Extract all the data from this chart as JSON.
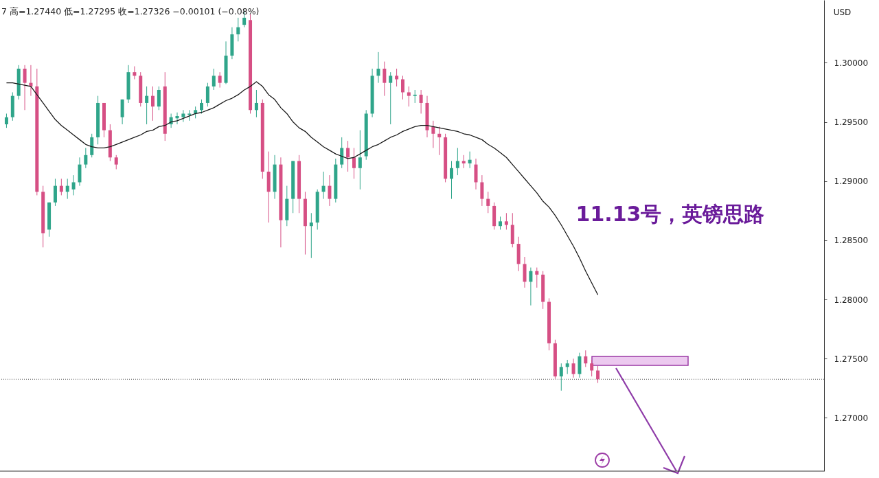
{
  "chart_data": {
    "type": "candlestick",
    "subtitle": "7 高=1.27440 低=1.27295 收=1.27326 −0.00101 (−0.08%)",
    "ylabel": "USD",
    "annotations": [
      "11.13号，英镑思路"
    ],
    "categories": [
      null,
      null,
      null,
      null,
      null,
      null,
      null,
      null,
      null,
      null,
      null,
      null,
      null,
      null,
      null,
      null,
      null,
      null,
      null,
      null,
      null,
      null,
      null,
      null,
      null,
      null,
      null,
      null,
      null,
      null,
      null,
      null,
      null,
      null,
      null,
      null,
      null,
      null,
      null,
      null,
      null,
      null,
      null,
      null,
      null,
      null,
      null,
      null,
      null,
      null,
      null,
      null,
      null,
      null,
      null,
      null,
      null,
      null,
      null,
      null,
      null,
      null,
      null,
      null,
      null,
      null,
      null,
      null,
      null,
      null,
      null,
      null,
      null,
      null,
      null,
      null,
      null,
      null,
      null,
      null,
      null,
      null,
      null,
      null,
      null,
      null,
      null,
      null,
      null,
      null,
      null,
      null,
      null,
      null,
      null,
      null,
      null,
      null
    ],
    "ohlc": [
      [
        1.2948,
        1.2957,
        1.2945,
        1.2954
      ],
      [
        1.2954,
        1.2975,
        1.2951,
        1.2972
      ],
      [
        1.2972,
        1.2998,
        1.2969,
        1.2995
      ],
      [
        1.2995,
        1.2998,
        1.296,
        1.2983
      ],
      [
        1.2983,
        1.2998,
        1.2972,
        1.298
      ],
      [
        1.298,
        1.2995,
        1.2888,
        1.2891
      ],
      [
        1.2891,
        1.2896,
        1.2844,
        1.2856
      ],
      [
        1.2859,
        1.2882,
        1.2853,
        1.2882
      ],
      [
        1.2882,
        1.2902,
        1.2879,
        1.2896
      ],
      [
        1.2896,
        1.2902,
        1.2888,
        1.2891
      ],
      [
        1.2891,
        1.2902,
        1.2885,
        1.2896
      ],
      [
        1.2893,
        1.2905,
        1.2888,
        1.2899
      ],
      [
        1.2899,
        1.292,
        1.2896,
        1.2914
      ],
      [
        1.2914,
        1.2928,
        1.2911,
        1.2922
      ],
      [
        1.2922,
        1.294,
        1.292,
        1.2937
      ],
      [
        1.2937,
        1.2972,
        1.2931,
        1.2966
      ],
      [
        1.2966,
        1.2966,
        1.2937,
        1.2943
      ],
      [
        1.2943,
        1.2948,
        1.2917,
        1.292
      ],
      [
        1.292,
        1.2922,
        1.291,
        1.2914
      ],
      [
        1.2954,
        1.2969,
        1.2948,
        1.2969
      ],
      [
        1.2969,
        1.2998,
        1.2966,
        1.2992
      ],
      [
        1.2992,
        1.2997,
        1.2986,
        1.2989
      ],
      [
        1.2989,
        1.2992,
        1.2963,
        1.2966
      ],
      [
        1.2966,
        1.298,
        1.2948,
        1.2972
      ],
      [
        1.2972,
        1.298,
        1.2951,
        1.2963
      ],
      [
        1.2963,
        1.298,
        1.296,
        1.2977
      ],
      [
        1.298,
        1.2992,
        1.2934,
        1.294
      ],
      [
        1.2948,
        1.2957,
        1.2945,
        1.2954
      ],
      [
        1.2953,
        1.2958,
        1.2948,
        1.2955
      ],
      [
        1.2954,
        1.296,
        1.295,
        1.2957
      ],
      [
        1.2956,
        1.296,
        1.2951,
        1.2957
      ],
      [
        1.2957,
        1.2963,
        1.2953,
        1.296
      ],
      [
        1.296,
        1.2969,
        1.2957,
        1.2966
      ],
      [
        1.2966,
        1.2983,
        1.2963,
        1.298
      ],
      [
        1.298,
        1.2995,
        1.2977,
        1.2989
      ],
      [
        1.2989,
        1.2992,
        1.2979,
        1.2983
      ],
      [
        1.2983,
        1.3018,
        1.2982,
        1.3006
      ],
      [
        1.3006,
        1.303,
        1.3003,
        1.3024
      ],
      [
        1.3024,
        1.3038,
        1.3018,
        1.303
      ],
      [
        1.3032,
        1.3044,
        1.303,
        1.3038
      ],
      [
        1.3036,
        1.3041,
        1.2957,
        1.296
      ],
      [
        1.296,
        1.2977,
        1.2954,
        1.2966
      ],
      [
        1.2966,
        1.2969,
        1.2902,
        1.2908
      ],
      [
        1.2908,
        1.2925,
        1.2865,
        1.2891
      ],
      [
        1.2891,
        1.2922,
        1.2885,
        1.2914
      ],
      [
        1.2914,
        1.292,
        1.2844,
        1.2867
      ],
      [
        1.2867,
        1.2896,
        1.2862,
        1.2885
      ],
      [
        1.2885,
        1.2917,
        1.2873,
        1.2917
      ],
      [
        1.2917,
        1.2922,
        1.2873,
        1.2885
      ],
      [
        1.2885,
        1.2891,
        1.2838,
        1.2862
      ],
      [
        1.2862,
        1.2873,
        1.2835,
        1.2865
      ],
      [
        1.2865,
        1.2893,
        1.2859,
        1.2891
      ],
      [
        1.2891,
        1.2908,
        1.2885,
        1.2896
      ],
      [
        1.2896,
        1.2905,
        1.2879,
        1.2885
      ],
      [
        1.2885,
        1.2919,
        1.2882,
        1.2914
      ],
      [
        1.2914,
        1.2937,
        1.2911,
        1.2928
      ],
      [
        1.2928,
        1.2934,
        1.2908,
        1.292
      ],
      [
        1.292,
        1.2928,
        1.2902,
        1.2911
      ],
      [
        1.2911,
        1.2943,
        1.2893,
        1.292
      ],
      [
        1.2921,
        1.296,
        1.2918,
        1.2957
      ],
      [
        1.2957,
        1.2995,
        1.2954,
        1.2989
      ],
      [
        1.2989,
        1.3009,
        1.2983,
        1.2995
      ],
      [
        1.2995,
        1.3001,
        1.2972,
        1.2983
      ],
      [
        1.2983,
        1.2992,
        1.2948,
        1.2989
      ],
      [
        1.2989,
        1.2995,
        1.298,
        1.2986
      ],
      [
        1.2986,
        1.2989,
        1.2969,
        1.2975
      ],
      [
        1.2975,
        1.298,
        1.2963,
        1.2972
      ],
      [
        1.2972,
        1.2977,
        1.2966,
        1.2973
      ],
      [
        1.2973,
        1.2977,
        1.2957,
        1.2966
      ],
      [
        1.2966,
        1.2972,
        1.2937,
        1.2943
      ],
      [
        1.2946,
        1.2951,
        1.2928,
        1.294
      ],
      [
        1.294,
        1.2946,
        1.2922,
        1.2937
      ],
      [
        1.2937,
        1.294,
        1.2899,
        1.2902
      ],
      [
        1.2902,
        1.2917,
        1.2885,
        1.2911
      ],
      [
        1.2911,
        1.2928,
        1.2905,
        1.2917
      ],
      [
        1.2917,
        1.2922,
        1.2911,
        1.2915
      ],
      [
        1.2915,
        1.2925,
        1.2911,
        1.2918
      ],
      [
        1.2914,
        1.2919,
        1.2893,
        1.2899
      ],
      [
        1.2899,
        1.2905,
        1.2879,
        1.2885
      ],
      [
        1.2885,
        1.2891,
        1.2873,
        1.2879
      ],
      [
        1.2879,
        1.2882,
        1.2859,
        1.2862
      ],
      [
        1.2862,
        1.287,
        1.2859,
        1.2866
      ],
      [
        1.2866,
        1.2873,
        1.2859,
        1.2863
      ],
      [
        1.2863,
        1.2873,
        1.2844,
        1.2847
      ],
      [
        1.2847,
        1.2853,
        1.2824,
        1.283
      ],
      [
        1.283,
        1.2836,
        1.281,
        1.2815
      ],
      [
        1.2815,
        1.2827,
        1.2795,
        1.2824
      ],
      [
        1.2824,
        1.2827,
        1.281,
        1.2821
      ],
      [
        1.2821,
        1.2824,
        1.2792,
        1.2798
      ],
      [
        1.2798,
        1.2801,
        1.2757,
        1.2763
      ],
      [
        1.2763,
        1.2766,
        1.2733,
        1.2735
      ],
      [
        1.2735,
        1.2746,
        1.2723,
        1.2743
      ],
      [
        1.2743,
        1.2749,
        1.2737,
        1.2746
      ],
      [
        1.2746,
        1.275,
        1.2734,
        1.2737
      ],
      [
        1.2737,
        1.2755,
        1.2734,
        1.2752
      ],
      [
        1.2752,
        1.2757,
        1.2743,
        1.2746
      ],
      [
        1.2746,
        1.2749,
        1.2735,
        1.274
      ],
      [
        1.274,
        1.2744,
        1.27295,
        1.27326
      ]
    ],
    "colors": [
      "#2fa58a",
      "#2fa58a",
      "#2fa58a",
      "#d64f84",
      "#d64f84",
      "#d64f84",
      "#d64f84",
      "#2fa58a",
      "#2fa58a",
      "#d64f84",
      "#2fa58a",
      "#2fa58a",
      "#2fa58a",
      "#2fa58a",
      "#2fa58a",
      "#2fa58a",
      "#d64f84",
      "#d64f84",
      "#d64f84",
      "#2fa58a",
      "#2fa58a",
      "#d64f84",
      "#d64f84",
      "#2fa58a",
      "#d64f84",
      "#2fa58a",
      "#d64f84",
      "#2fa58a",
      "#2fa58a",
      "#2fa58a",
      "#2fa58a",
      "#2fa58a",
      "#2fa58a",
      "#2fa58a",
      "#2fa58a",
      "#d64f84",
      "#2fa58a",
      "#2fa58a",
      "#2fa58a",
      "#2fa58a",
      "#d64f84",
      "#2fa58a",
      "#d64f84",
      "#d64f84",
      "#2fa58a",
      "#d64f84",
      "#2fa58a",
      "#2fa58a",
      "#d64f84",
      "#d64f84",
      "#2fa58a",
      "#2fa58a",
      "#2fa58a",
      "#d64f84",
      "#2fa58a",
      "#2fa58a",
      "#d64f84",
      "#d64f84",
      "#2fa58a",
      "#2fa58a",
      "#2fa58a",
      "#2fa58a",
      "#d64f84",
      "#2fa58a",
      "#d64f84",
      "#d64f84",
      "#d64f84",
      "#2fa58a",
      "#d64f84",
      "#d64f84",
      "#d64f84",
      "#d64f84",
      "#d64f84",
      "#2fa58a",
      "#2fa58a",
      "#d64f84",
      "#2fa58a",
      "#d64f84",
      "#d64f84",
      "#d64f84",
      "#d64f84",
      "#2fa58a",
      "#d64f84",
      "#d64f84",
      "#d64f84",
      "#d64f84",
      "#2fa58a",
      "#d64f84",
      "#d64f84",
      "#d64f84",
      "#d64f84",
      "#2fa58a",
      "#2fa58a",
      "#d64f84",
      "#2fa58a",
      "#d64f84",
      "#d64f84",
      "#d64f84"
    ],
    "series": [
      {
        "type": "line",
        "color": "#1a1a1a",
        "values": [
          1.2983,
          1.2983,
          1.2982,
          1.2981,
          1.298,
          1.2973,
          1.2966,
          1.2959,
          1.2952,
          1.2947,
          1.2943,
          1.2939,
          1.2935,
          1.2931,
          1.2929,
          1.2928,
          1.2928,
          1.2929,
          1.2931,
          1.2933,
          1.2935,
          1.2937,
          1.2939,
          1.2942,
          1.2943,
          1.2946,
          1.2947,
          1.295,
          1.2951,
          1.2953,
          1.2955,
          1.2957,
          1.2958,
          1.296,
          1.2962,
          1.2965,
          1.2968,
          1.297,
          1.2973,
          1.2977,
          1.298,
          1.2984,
          1.298,
          1.2973,
          1.2969,
          1.2962,
          1.2957,
          1.295,
          1.2945,
          1.2942,
          1.2937,
          1.2933,
          1.2929,
          1.2926,
          1.2923,
          1.2921,
          1.2919,
          1.292,
          1.2923,
          1.2926,
          1.2929,
          1.2931,
          1.2934,
          1.2937,
          1.2939,
          1.2942,
          1.2944,
          1.2946,
          1.2947,
          1.2947,
          1.2946,
          1.2945,
          1.2944,
          1.2943,
          1.2942,
          1.294,
          1.2939,
          1.2937,
          1.2935,
          1.2931,
          1.2928,
          1.2924,
          1.292,
          1.2914,
          1.2908,
          1.2902,
          1.2896,
          1.289,
          1.2883,
          1.2878,
          1.2871,
          1.2863,
          1.2854,
          1.2845,
          1.2835,
          1.2824,
          1.2814,
          1.2804
        ]
      }
    ],
    "ylim": [
      1.2655,
      1.3053
    ],
    "yticks": [
      {
        "value": 1.27,
        "label": "1.27000"
      },
      {
        "value": 1.275,
        "label": "1.27500"
      },
      {
        "value": 1.28,
        "label": "1.28000"
      },
      {
        "value": 1.285,
        "label": "1.28500"
      },
      {
        "value": 1.29,
        "label": "1.29000"
      },
      {
        "value": 1.295,
        "label": "1.29500"
      },
      {
        "value": 1.3,
        "label": "1.30000"
      }
    ],
    "tick_labels": "y",
    "ref_lines": [
      {
        "axis": "y",
        "value": 1.27326,
        "color": "#555555",
        "line_style": "dotted"
      }
    ]
  }
}
